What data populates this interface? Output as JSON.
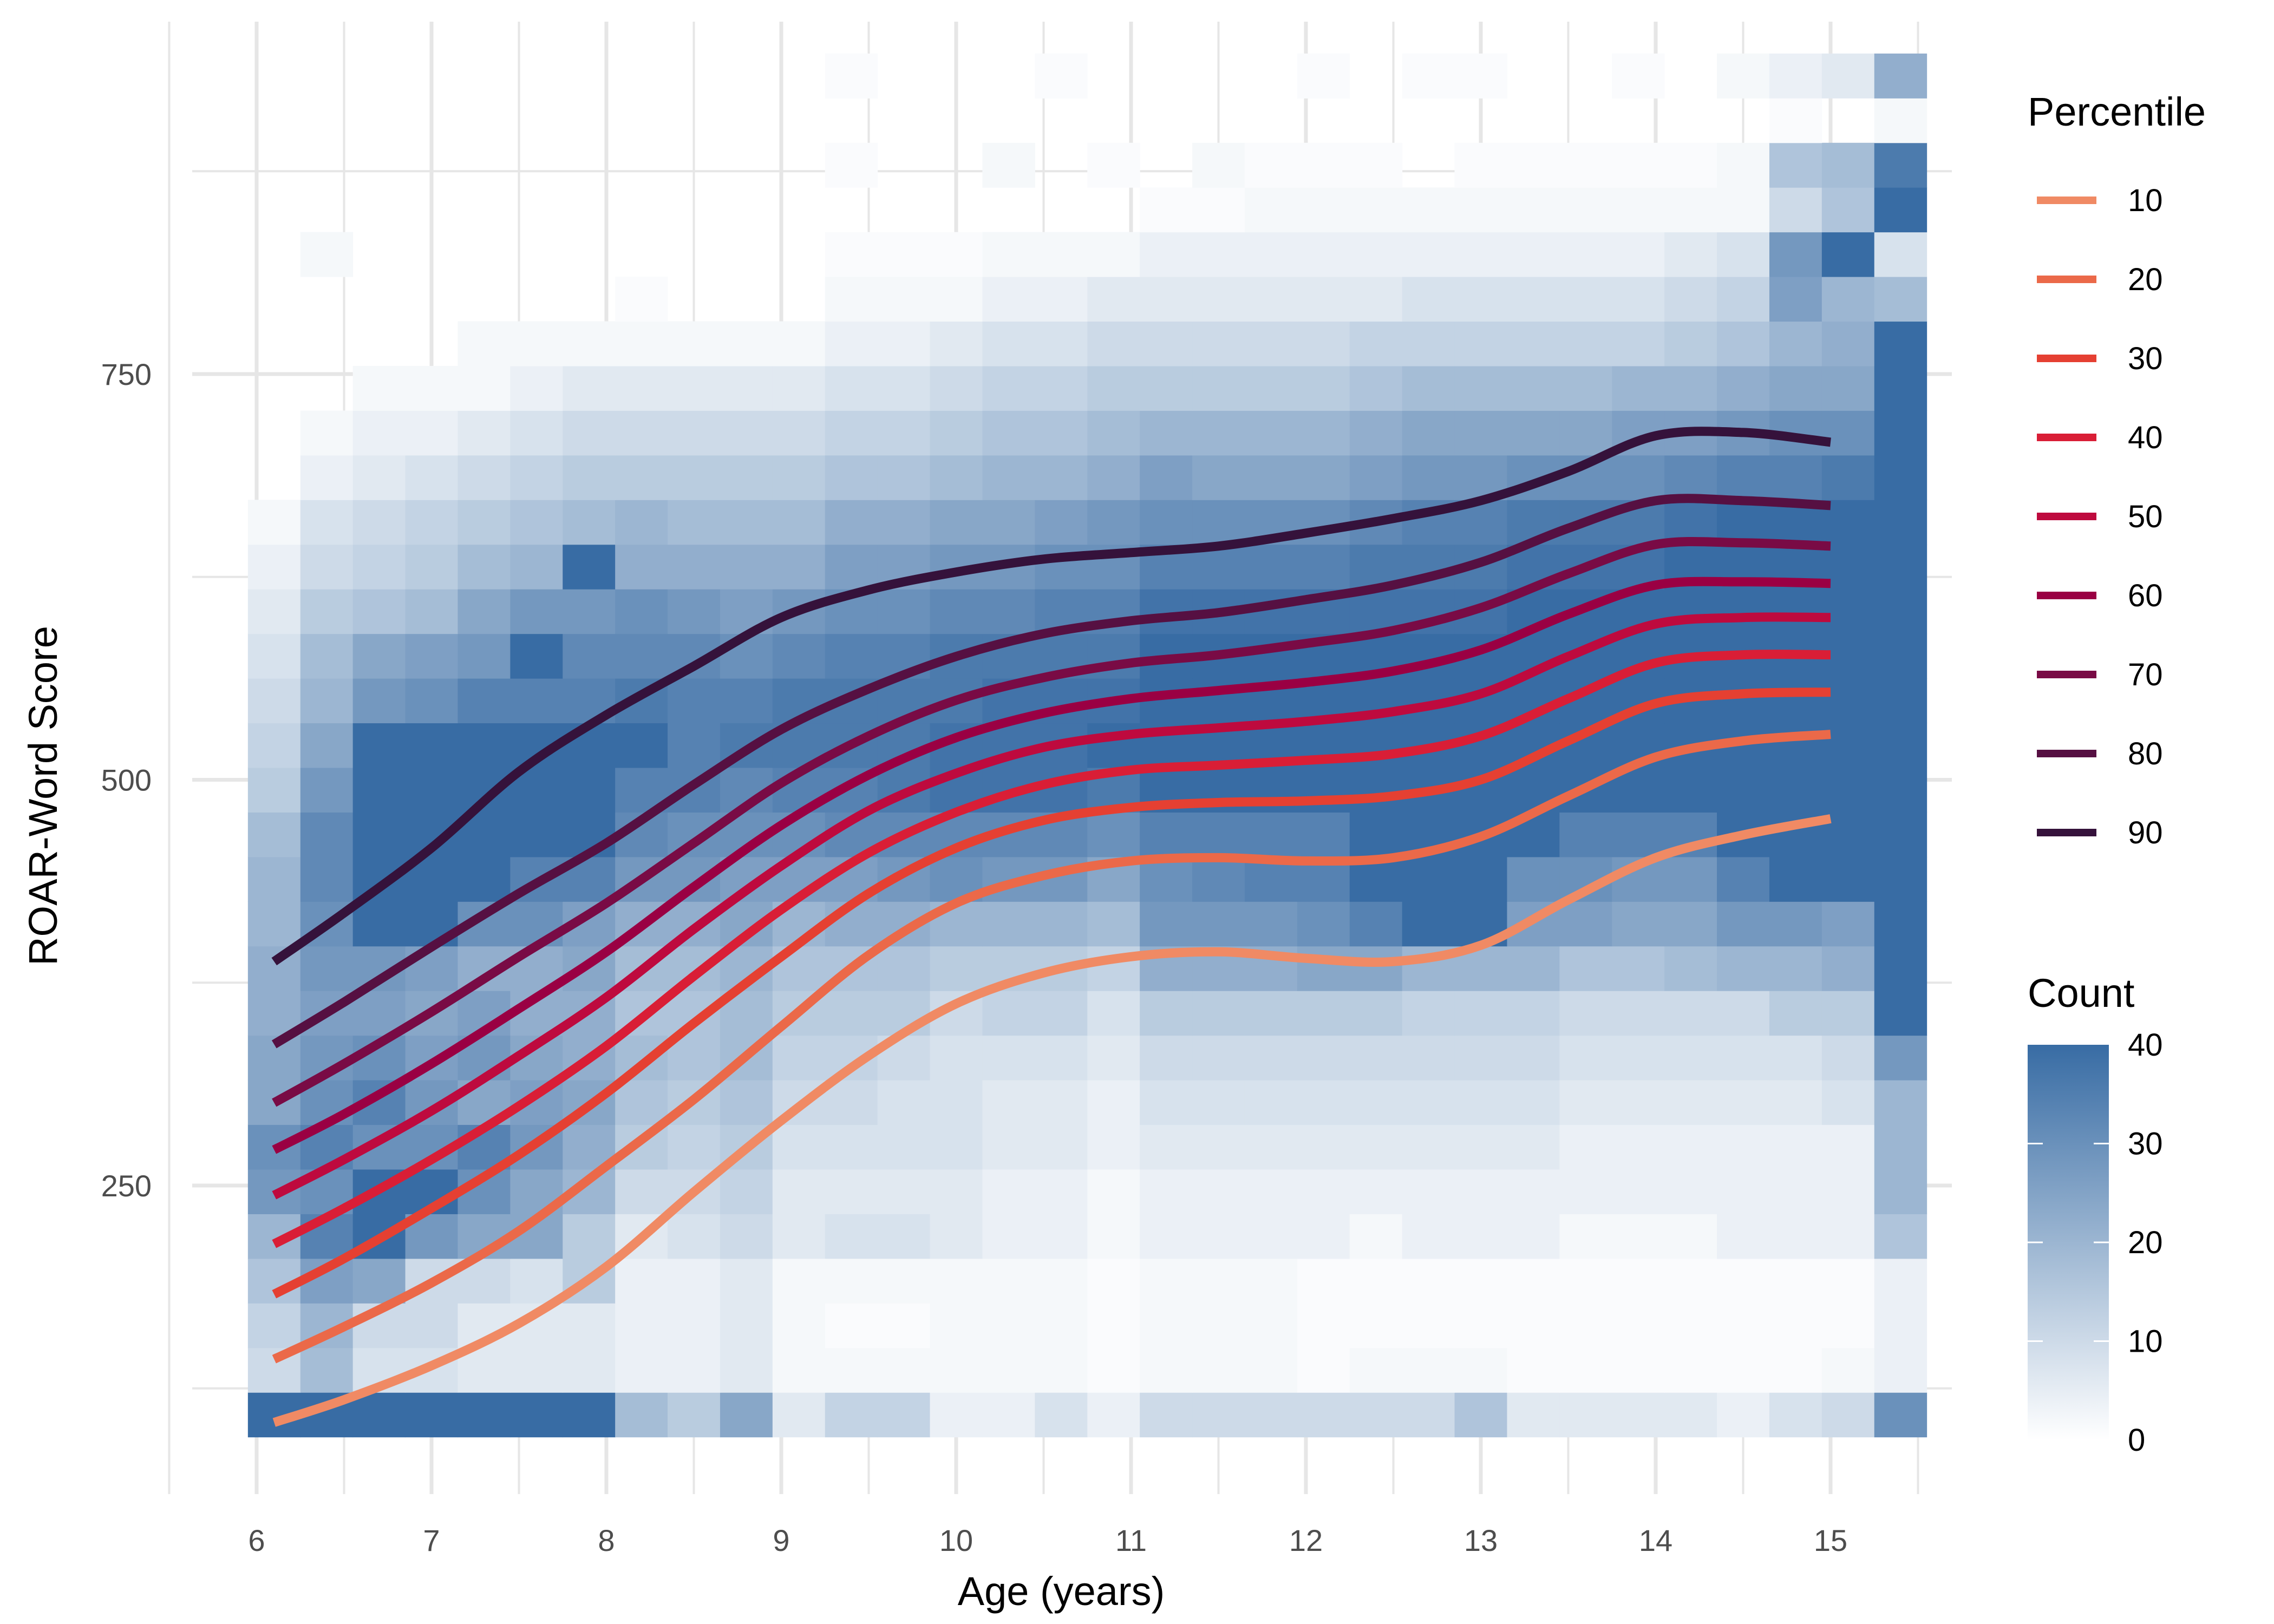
{
  "chart_data": {
    "type": "heatmap",
    "title": "",
    "xlabel": "Age (years)",
    "ylabel": "ROAR-Word Score",
    "xlim": [
      5.6,
      15.5
    ],
    "ylim": [
      60,
      960
    ],
    "x_ticks": [
      6,
      7,
      8,
      9,
      10,
      11,
      12,
      13,
      14,
      15
    ],
    "y_ticks": [
      250,
      500,
      750
    ],
    "grid": true,
    "heatmap": {
      "x_bin_start": 5.95,
      "x_bin_width": 0.3,
      "y_bin_start": 95,
      "y_bin_width": 27.5,
      "count_range": [
        0,
        40
      ],
      "low_color": "#ffffff",
      "high_color": "#386ca4",
      "counts": [
        [
          40,
          40,
          40,
          40,
          40,
          40,
          40,
          18,
          14,
          24,
          6,
          12,
          12,
          4,
          4,
          8,
          4,
          10,
          10,
          10,
          10,
          10,
          10,
          16,
          6,
          6,
          6,
          6,
          4,
          8,
          10,
          30
        ],
        [
          10,
          18,
          8,
          8,
          6,
          6,
          6,
          4,
          4,
          6,
          2,
          2,
          2,
          2,
          2,
          2,
          1,
          2,
          2,
          2,
          1,
          2,
          2,
          2,
          1,
          1,
          1,
          1,
          1,
          1,
          2,
          4
        ],
        [
          12,
          20,
          10,
          10,
          6,
          6,
          6,
          4,
          4,
          6,
          2,
          1,
          1,
          2,
          2,
          2,
          1,
          2,
          2,
          2,
          1,
          1,
          1,
          1,
          1,
          1,
          1,
          1,
          1,
          1,
          1,
          4
        ],
        [
          16,
          26,
          24,
          10,
          10,
          8,
          14,
          4,
          4,
          6,
          2,
          2,
          2,
          2,
          2,
          2,
          1,
          2,
          2,
          2,
          1,
          1,
          1,
          1,
          1,
          1,
          1,
          1,
          1,
          1,
          1,
          4
        ],
        [
          20,
          34,
          40,
          28,
          24,
          24,
          14,
          6,
          8,
          10,
          6,
          8,
          8,
          6,
          4,
          4,
          2,
          4,
          4,
          4,
          4,
          2,
          4,
          4,
          4,
          2,
          2,
          2,
          4,
          4,
          4,
          16
        ],
        [
          28,
          30,
          40,
          40,
          30,
          24,
          20,
          10,
          10,
          12,
          6,
          6,
          6,
          6,
          4,
          4,
          2,
          4,
          4,
          4,
          4,
          4,
          4,
          4,
          4,
          4,
          4,
          4,
          4,
          4,
          4,
          20
        ],
        [
          30,
          34,
          30,
          30,
          34,
          28,
          22,
          14,
          12,
          14,
          8,
          8,
          8,
          8,
          6,
          6,
          4,
          6,
          6,
          6,
          6,
          6,
          6,
          6,
          6,
          4,
          4,
          4,
          4,
          4,
          4,
          20
        ],
        [
          24,
          30,
          34,
          28,
          24,
          26,
          24,
          16,
          14,
          16,
          10,
          10,
          8,
          8,
          6,
          6,
          4,
          8,
          8,
          8,
          8,
          8,
          8,
          8,
          8,
          6,
          6,
          6,
          6,
          6,
          8,
          20
        ],
        [
          24,
          28,
          30,
          26,
          28,
          24,
          22,
          18,
          16,
          18,
          12,
          12,
          10,
          8,
          8,
          8,
          6,
          10,
          10,
          10,
          10,
          10,
          10,
          10,
          10,
          8,
          8,
          8,
          8,
          8,
          10,
          28
        ],
        [
          22,
          26,
          26,
          24,
          26,
          22,
          22,
          16,
          16,
          18,
          14,
          14,
          14,
          10,
          12,
          12,
          8,
          14,
          14,
          14,
          14,
          14,
          12,
          12,
          12,
          10,
          10,
          10,
          10,
          14,
          14,
          40
        ],
        [
          22,
          28,
          28,
          26,
          22,
          22,
          24,
          18,
          18,
          20,
          16,
          16,
          16,
          14,
          14,
          14,
          12,
          22,
          22,
          22,
          24,
          24,
          20,
          20,
          20,
          16,
          16,
          18,
          20,
          20,
          22,
          40
        ],
        [
          20,
          30,
          40,
          40,
          30,
          30,
          26,
          22,
          22,
          24,
          20,
          22,
          22,
          20,
          20,
          20,
          18,
          28,
          28,
          28,
          30,
          34,
          40,
          40,
          26,
          26,
          24,
          24,
          28,
          28,
          26,
          40
        ],
        [
          20,
          32,
          40,
          40,
          40,
          34,
          34,
          28,
          28,
          26,
          26,
          26,
          28,
          30,
          28,
          28,
          24,
          30,
          32,
          34,
          34,
          40,
          40,
          40,
          30,
          30,
          28,
          28,
          34,
          40,
          40,
          40
        ],
        [
          18,
          32,
          40,
          40,
          40,
          40,
          40,
          32,
          30,
          30,
          30,
          32,
          32,
          32,
          32,
          32,
          30,
          34,
          34,
          34,
          34,
          40,
          40,
          40,
          40,
          34,
          34,
          34,
          40,
          40,
          40,
          40
        ],
        [
          14,
          28,
          40,
          40,
          40,
          40,
          40,
          34,
          34,
          32,
          34,
          34,
          36,
          38,
          38,
          38,
          36,
          40,
          40,
          40,
          40,
          40,
          40,
          40,
          40,
          40,
          40,
          40,
          40,
          40,
          40,
          40
        ],
        [
          12,
          24,
          40,
          40,
          40,
          40,
          40,
          40,
          34,
          36,
          36,
          36,
          36,
          38,
          38,
          38,
          40,
          40,
          40,
          40,
          40,
          40,
          40,
          40,
          40,
          40,
          40,
          40,
          40,
          40,
          40,
          40
        ],
        [
          10,
          20,
          28,
          30,
          34,
          34,
          34,
          36,
          34,
          34,
          36,
          36,
          36,
          36,
          38,
          38,
          38,
          40,
          40,
          40,
          40,
          40,
          40,
          40,
          40,
          40,
          40,
          40,
          40,
          40,
          40,
          40
        ],
        [
          8,
          18,
          24,
          26,
          28,
          40,
          32,
          32,
          32,
          30,
          32,
          34,
          34,
          36,
          36,
          36,
          36,
          40,
          40,
          40,
          40,
          40,
          40,
          40,
          40,
          40,
          40,
          40,
          40,
          40,
          40,
          40
        ],
        [
          6,
          14,
          16,
          18,
          24,
          28,
          28,
          30,
          28,
          26,
          28,
          30,
          30,
          32,
          32,
          34,
          34,
          38,
          38,
          38,
          38,
          38,
          38,
          38,
          40,
          40,
          40,
          40,
          40,
          40,
          40,
          40
        ],
        [
          4,
          10,
          12,
          14,
          18,
          20,
          40,
          22,
          22,
          22,
          22,
          26,
          26,
          28,
          28,
          30,
          30,
          34,
          34,
          34,
          34,
          36,
          36,
          36,
          38,
          38,
          38,
          40,
          40,
          40,
          40,
          40
        ],
        [
          2,
          8,
          10,
          12,
          14,
          16,
          18,
          20,
          18,
          18,
          18,
          22,
          22,
          24,
          24,
          26,
          28,
          30,
          30,
          30,
          30,
          32,
          34,
          34,
          36,
          36,
          36,
          38,
          40,
          40,
          40,
          40
        ],
        [
          0,
          4,
          6,
          8,
          10,
          12,
          14,
          14,
          14,
          14,
          14,
          16,
          16,
          18,
          20,
          20,
          22,
          26,
          24,
          24,
          24,
          26,
          28,
          28,
          30,
          30,
          30,
          32,
          34,
          34,
          36,
          40
        ],
        [
          0,
          2,
          4,
          4,
          6,
          8,
          10,
          10,
          10,
          10,
          10,
          12,
          12,
          14,
          16,
          16,
          18,
          20,
          20,
          20,
          20,
          22,
          24,
          24,
          24,
          24,
          26,
          26,
          28,
          30,
          30,
          40
        ],
        [
          0,
          0,
          2,
          2,
          2,
          4,
          6,
          6,
          6,
          6,
          6,
          8,
          8,
          10,
          12,
          12,
          14,
          14,
          14,
          14,
          14,
          16,
          18,
          18,
          18,
          18,
          20,
          20,
          22,
          24,
          24,
          40
        ],
        [
          0,
          0,
          0,
          0,
          2,
          2,
          2,
          2,
          2,
          2,
          2,
          4,
          4,
          6,
          8,
          8,
          10,
          10,
          10,
          10,
          10,
          12,
          12,
          12,
          12,
          12,
          12,
          14,
          16,
          20,
          22,
          40
        ],
        [
          0,
          0,
          0,
          0,
          0,
          0,
          0,
          1,
          0,
          0,
          0,
          2,
          2,
          2,
          4,
          4,
          6,
          6,
          6,
          6,
          6,
          6,
          8,
          8,
          8,
          8,
          8,
          10,
          12,
          26,
          20,
          18
        ],
        [
          0,
          2,
          0,
          0,
          0,
          0,
          0,
          0,
          0,
          0,
          0,
          1,
          1,
          1,
          2,
          2,
          2,
          4,
          4,
          4,
          4,
          4,
          4,
          4,
          4,
          4,
          4,
          6,
          8,
          28,
          40,
          8
        ],
        [
          0,
          0,
          0,
          0,
          0,
          0,
          0,
          0,
          0,
          0,
          0,
          0,
          0,
          0,
          0,
          0,
          0,
          1,
          1,
          2,
          2,
          2,
          2,
          2,
          2,
          2,
          2,
          2,
          2,
          10,
          16,
          40
        ],
        [
          0,
          0,
          0,
          0,
          0,
          0,
          0,
          0,
          0,
          0,
          0,
          1,
          0,
          0,
          2,
          0,
          1,
          0,
          2,
          1,
          1,
          1,
          0,
          1,
          1,
          1,
          1,
          1,
          2,
          16,
          18,
          36
        ],
        [
          0,
          0,
          0,
          0,
          0,
          0,
          0,
          0,
          0,
          0,
          0,
          0,
          0,
          0,
          0,
          0,
          0,
          0,
          0,
          0,
          0,
          0,
          0,
          0,
          0,
          0,
          0,
          0,
          0,
          1,
          0,
          2
        ],
        [
          0,
          0,
          0,
          0,
          0,
          0,
          0,
          0,
          0,
          0,
          0,
          1,
          0,
          0,
          0,
          1,
          0,
          0,
          0,
          0,
          1,
          0,
          1,
          1,
          0,
          0,
          1,
          0,
          2,
          4,
          6,
          22
        ]
      ]
    },
    "legend_percentile": {
      "title": "Percentile",
      "placement": "right-top"
    },
    "legend_count": {
      "title": "Count",
      "placement": "right-bottom",
      "ticks": [
        0,
        10,
        20,
        30,
        40
      ]
    },
    "x": [
      6.1,
      6.5,
      7.0,
      7.5,
      8.0,
      8.5,
      9.0,
      9.5,
      10.0,
      10.5,
      11.0,
      11.5,
      12.0,
      12.5,
      13.0,
      13.5,
      14.0,
      14.5,
      15.0
    ],
    "series": [
      {
        "name": "10",
        "color": "#f08a64",
        "values": [
          104,
          118,
          139,
          165,
          200,
          246,
          290,
          330,
          362,
          381,
          391,
          394,
          390,
          388,
          398,
          426,
          452,
          466,
          476
        ]
      },
      {
        "name": "20",
        "color": "#eb6949",
        "values": [
          143,
          163,
          190,
          222,
          262,
          303,
          348,
          392,
          424,
          441,
          450,
          452,
          450,
          452,
          465,
          490,
          514,
          524,
          528
        ]
      },
      {
        "name": "30",
        "color": "#e54032",
        "values": [
          183,
          205,
          236,
          269,
          307,
          350,
          391,
          430,
          458,
          475,
          483,
          486,
          487,
          490,
          500,
          524,
          547,
          553,
          554
        ]
      },
      {
        "name": "40",
        "color": "#d91e36",
        "values": [
          214,
          236,
          266,
          299,
          336,
          379,
          420,
          455,
          480,
          497,
          506,
          509,
          512,
          516,
          527,
          550,
          572,
          577,
          577
        ]
      },
      {
        "name": "50",
        "color": "#be0a3e",
        "values": [
          244,
          266,
          296,
          330,
          366,
          408,
          447,
          481,
          504,
          520,
          528,
          532,
          536,
          542,
          553,
          576,
          596,
          600,
          600
        ]
      },
      {
        "name": "60",
        "color": "#9a0043",
        "values": [
          272,
          294,
          325,
          359,
          394,
          434,
          472,
          503,
          526,
          541,
          550,
          555,
          560,
          567,
          580,
          602,
          620,
          622,
          621
        ]
      },
      {
        "name": "70",
        "color": "#790b45",
        "values": [
          301,
          325,
          357,
          391,
          424,
          461,
          498,
          527,
          549,
          563,
          572,
          577,
          584,
          592,
          606,
          627,
          645,
          646,
          644
        ]
      },
      {
        "name": "80",
        "color": "#561042",
        "values": [
          337,
          363,
          397,
          430,
          461,
          497,
          531,
          556,
          576,
          590,
          598,
          603,
          611,
          620,
          634,
          655,
          672,
          672,
          669
        ]
      },
      {
        "name": "90",
        "color": "#35123b",
        "values": [
          388,
          418,
          458,
          505,
          540,
          570,
          600,
          617,
          628,
          636,
          640,
          644,
          652,
          661,
          672,
          690,
          712,
          714,
          708
        ]
      }
    ]
  },
  "labels": {
    "x_axis_title": "Age (years)",
    "y_axis_title": "ROAR-Word Score",
    "percentile_legend_title": "Percentile",
    "count_legend_title": "Count"
  }
}
